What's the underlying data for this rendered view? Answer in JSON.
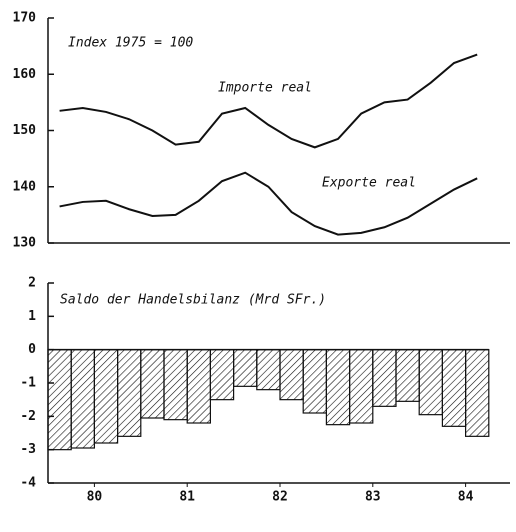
{
  "chart_data": [
    {
      "type": "line",
      "title": "Index 1975 = 100",
      "x": [
        80.125,
        80.375,
        80.625,
        80.875,
        81.125,
        81.375,
        81.625,
        81.875,
        82.125,
        82.375,
        82.625,
        82.875,
        83.125,
        83.375,
        83.625,
        83.875,
        84.125,
        84.375,
        84.625
      ],
      "series": [
        {
          "name": "Importe real",
          "color": "#111111",
          "values": [
            153.5,
            154,
            153.3,
            152,
            150,
            147.5,
            148,
            153,
            154,
            151,
            148.5,
            147,
            148.5,
            153,
            155,
            155.5,
            158.5,
            162,
            163.5
          ]
        },
        {
          "name": "Exporte real",
          "color": "#111111",
          "values": [
            136.5,
            137.3,
            137.5,
            136,
            134.8,
            135,
            137.5,
            141,
            142.5,
            140,
            135.5,
            133,
            131.5,
            131.8,
            132.8,
            134.5,
            137,
            139.5,
            141.5
          ]
        }
      ],
      "xlim": [
        80,
        85
      ],
      "ylim": [
        130,
        170
      ],
      "yticks": [
        130,
        140,
        150,
        160,
        170
      ]
    },
    {
      "type": "bar",
      "title": "Saldo der Handelsbilanz (Mrd SFr.)",
      "x": [
        80.125,
        80.375,
        80.625,
        80.875,
        81.125,
        81.375,
        81.625,
        81.875,
        82.125,
        82.375,
        82.625,
        82.875,
        83.125,
        83.375,
        83.625,
        83.875,
        84.125,
        84.375,
        84.625
      ],
      "values": [
        -3.0,
        -2.95,
        -2.8,
        -2.6,
        -2.05,
        -2.1,
        -2.2,
        -1.5,
        -1.1,
        -1.2,
        -1.5,
        -1.9,
        -2.25,
        -2.2,
        -1.7,
        -1.55,
        -1.95,
        -2.3,
        -2.6
      ],
      "color": "#111111",
      "xlim": [
        80,
        85
      ],
      "ylim": [
        -4,
        2
      ],
      "yticks": [
        -4,
        -3,
        -2,
        -1,
        0,
        1,
        2
      ],
      "xticks": [
        {
          "value": 80.5,
          "label": "80"
        },
        {
          "value": 81.5,
          "label": "81"
        },
        {
          "value": 82.5,
          "label": "82"
        },
        {
          "value": 83.5,
          "label": "83"
        },
        {
          "value": 84.5,
          "label": "84"
        }
      ]
    }
  ]
}
